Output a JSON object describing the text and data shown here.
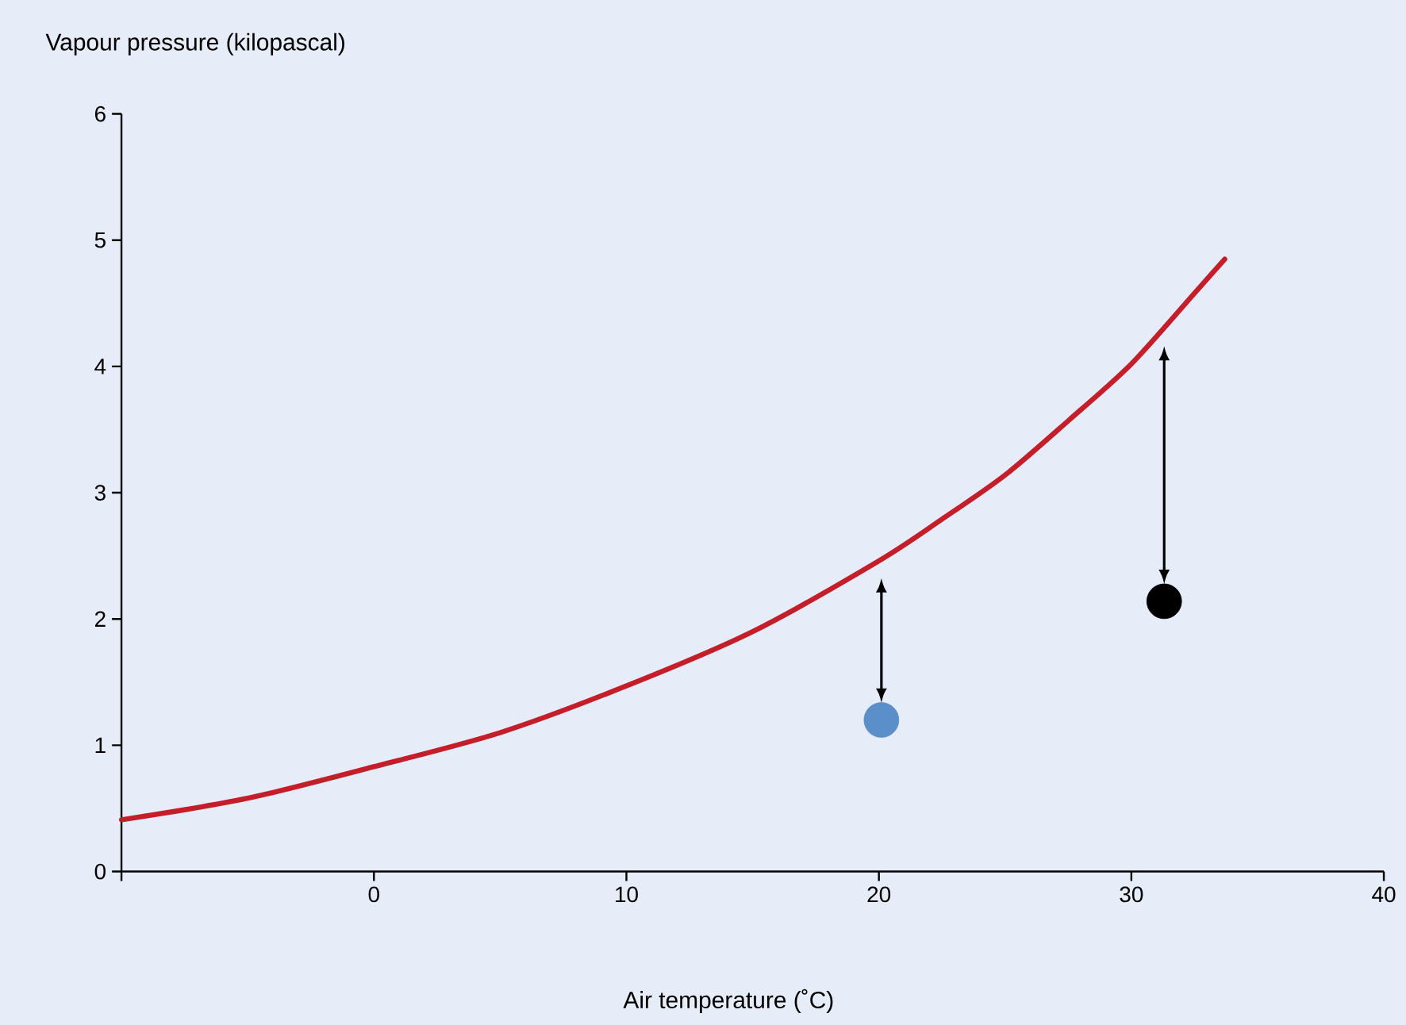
{
  "chart_data": {
    "type": "line",
    "xlabel": "Air temperature (˚C)",
    "ylabel": "Vapour pressure (kilopascal)",
    "xlim": [
      -10,
      40
    ],
    "ylim": [
      0,
      6
    ],
    "xticks": [
      {
        "value": -10,
        "label": null
      },
      0,
      10,
      20,
      30,
      40
    ],
    "yticks": [
      0,
      1,
      2,
      3,
      4,
      5,
      6
    ],
    "grid": false,
    "series": [
      {
        "type": "line",
        "color": "#c41e2a",
        "marker": "none",
        "x": [
          -10,
          -5,
          0,
          5,
          10,
          15,
          20,
          22.5,
          25,
          27.5,
          30,
          32.5,
          33.7
        ],
        "values": [
          0.41,
          0.58,
          0.83,
          1.1,
          1.47,
          1.9,
          2.46,
          2.79,
          3.14,
          3.57,
          4.02,
          4.58,
          4.85
        ]
      },
      {
        "type": "scatter",
        "color": "#5b8fc9",
        "marker": "circle",
        "x": [
          20.1
        ],
        "values": [
          1.2
        ]
      },
      {
        "type": "scatter",
        "color": "#000000",
        "marker": "circle",
        "x": [
          31.3
        ],
        "values": [
          2.14
        ]
      }
    ]
  }
}
